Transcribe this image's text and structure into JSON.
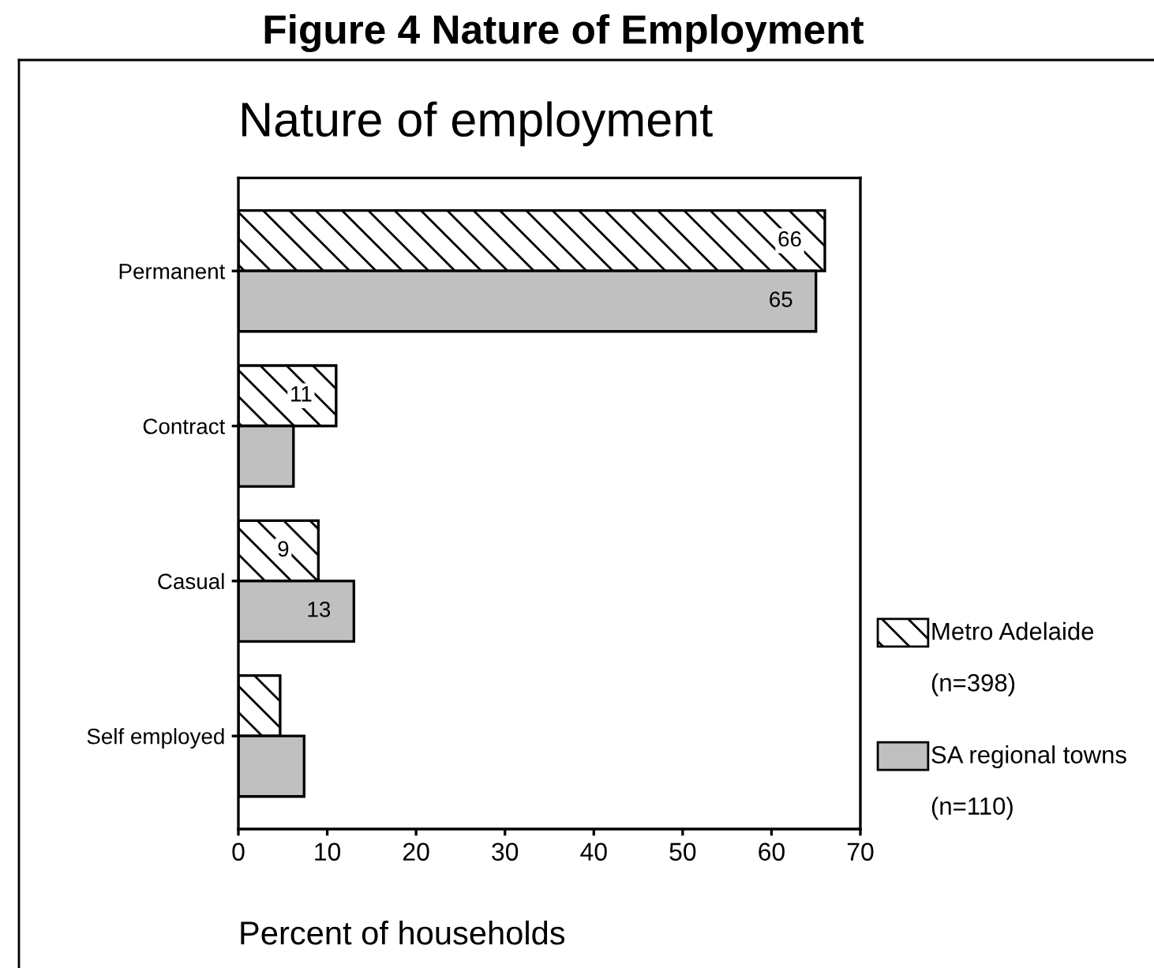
{
  "chart_data": {
    "type": "bar",
    "orientation": "horizontal",
    "title": "Figure 4 Nature of Employment",
    "subtitle": "Nature of employment",
    "xlabel": "Percent of households",
    "categories": [
      "Permanent",
      "Contract",
      "Casual",
      "Self employed"
    ],
    "series": [
      {
        "name": "Metro Adelaide\n(n=398)",
        "color": "#000000",
        "values": [
          66,
          11,
          9,
          4.7
        ],
        "value_labels": [
          "66",
          "11",
          "9",
          null
        ]
      },
      {
        "name": "SA regional towns\n(n=110)",
        "color": "#c0c0c0",
        "values": [
          65,
          6.2,
          13,
          7.4
        ],
        "value_labels": [
          "65",
          null,
          "13",
          null
        ]
      }
    ],
    "xlim": [
      0,
      70
    ],
    "xticks": [
      0,
      10,
      20,
      30,
      40,
      50,
      60,
      70
    ],
    "legend": "right",
    "grid": false
  }
}
